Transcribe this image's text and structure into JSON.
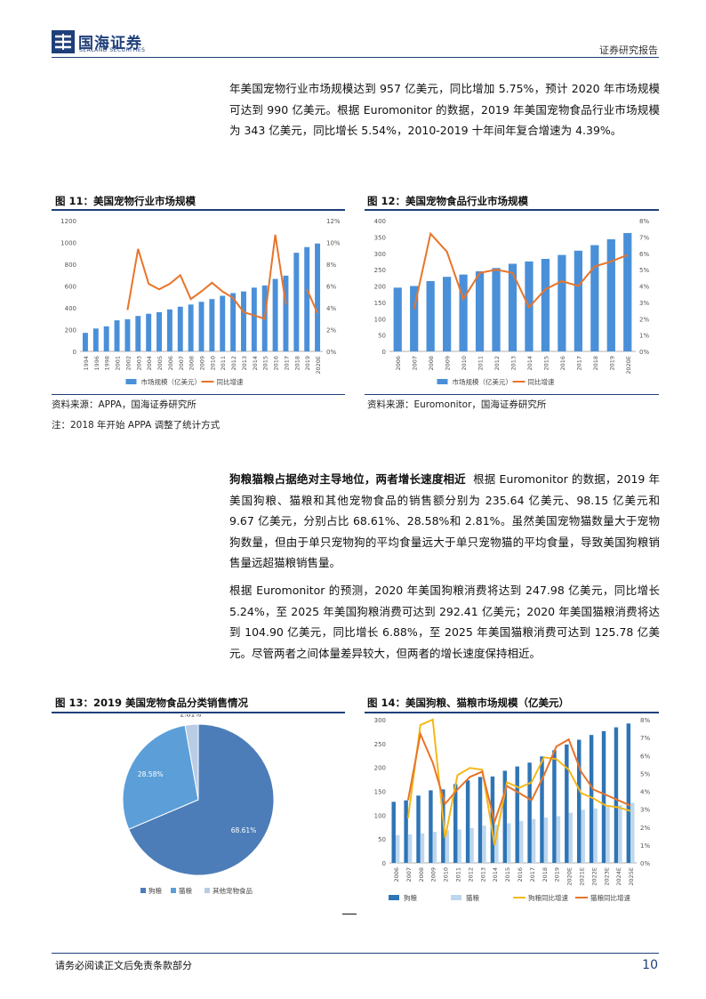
{
  "header": {
    "brand": "国海证券",
    "brand_en": "SEALAND SECURITIES",
    "report_type": "证券研究报告"
  },
  "intro_paragraph": "年美国宠物行业市场规模达到 957 亿美元，同比增加 5.75%，预计 2020 年市场规模可达到 990 亿美元。根据 Euromonitor 的数据，2019 年美国宠物食品行业市场规模为 343 亿美元，同比增长 5.54%，2010-2019 十年间年复合增速为 4.39%。",
  "fig11": {
    "title": "图 11：美国宠物行业市场规模",
    "source": "资料来源：APPA，国海证券研究所",
    "note": "注：2018 年开始 APPA 调整了统计方式"
  },
  "fig12": {
    "title": "图 12：美国宠物食品行业市场规模",
    "source": "资料来源：Euromonitor，国海证券研究所"
  },
  "section2": {
    "lead": "狗粮猫粮占据绝对主导地位，两者增长速度相近",
    "para1_rest": "根据 Euromonitor 的数据，2019 年美国狗粮、猫粮和其他宠物食品的销售额分别为 235.64 亿美元、98.15 亿美元和 9.67 亿美元，分别占比 68.61%、28.58%和 2.81%。虽然美国宠物猫数量大于宠物狗数量，但由于单只宠物狗的平均食量远大于单只宠物猫的平均食量，导致美国狗粮销售量远超猫粮销售量。",
    "para2": "根据 Euromonitor 的预测，2020 年美国狗粮消费将达到 247.98 亿美元，同比增长 5.24%，至 2025 年美国狗粮消费可达到 292.41 亿美元；2020 年美国猫粮消费将达到 104.90 亿美元，同比增长 6.88%，至 2025 年美国猫粮消费可达到 125.78 亿美元。尽管两者之间体量差异较大，但两者的增长速度保持相近。"
  },
  "fig13": {
    "title": "图 13：2019 美国宠物食品分类销售情况"
  },
  "fig14": {
    "title": "图 14：美国狗粮、猫粮市场规模（亿美元）"
  },
  "footer": {
    "disclaimer": "请务必阅读正文后免责条款部分",
    "page": "10"
  },
  "chart_data": [
    {
      "id": "fig11",
      "type": "bar+line",
      "categories": [
        "1994",
        "1996",
        "1998",
        "2001",
        "2002",
        "2003",
        "2004",
        "2005",
        "2006",
        "2007",
        "2008",
        "2009",
        "2010",
        "2011",
        "2012",
        "2013",
        "2014",
        "2015",
        "2016",
        "2017",
        "2018",
        "2019",
        "2020E"
      ],
      "series": [
        {
          "name": "市场规模（亿美元）",
          "type": "bar",
          "axis": "left",
          "color": "#4a90d9",
          "values": [
            170,
            210,
            230,
            285,
            295,
            325,
            345,
            360,
            385,
            410,
            430,
            455,
            480,
            510,
            535,
            550,
            585,
            605,
            665,
            695,
            905,
            957,
            990
          ]
        },
        {
          "name": "同比增速",
          "type": "line",
          "axis": "right",
          "color": "#e8742a",
          "values": [
            null,
            null,
            null,
            null,
            3.8,
            9.4,
            6.2,
            5.7,
            6.2,
            7.0,
            4.8,
            5.5,
            6.3,
            5.5,
            4.9,
            3.6,
            3.3,
            3.0,
            10.7,
            4.3,
            null,
            5.7,
            3.5
          ]
        }
      ],
      "ylim_left": [
        0,
        1200
      ],
      "yticks_left": [
        "0",
        "200",
        "400",
        "600",
        "800",
        "1000",
        "1200"
      ],
      "ylim_right": [
        0,
        12
      ],
      "yticks_right": [
        "0%",
        "2%",
        "4%",
        "6%",
        "8%",
        "10%",
        "12%"
      ]
    },
    {
      "id": "fig12",
      "type": "bar+line",
      "categories": [
        "2006",
        "2007",
        "2008",
        "2009",
        "2010",
        "2011",
        "2012",
        "2013",
        "2014",
        "2015",
        "2016",
        "2017",
        "2018",
        "2019",
        "2020E"
      ],
      "series": [
        {
          "name": "市场规模（亿美元）",
          "type": "bar",
          "axis": "left",
          "color": "#4a90d9",
          "values": [
            195,
            200,
            215,
            228,
            235,
            245,
            255,
            268,
            275,
            283,
            295,
            308,
            325,
            343,
            362
          ]
        },
        {
          "name": "同比增速",
          "type": "line",
          "axis": "right",
          "color": "#e8742a",
          "values": [
            null,
            2.6,
            7.2,
            6.1,
            3.2,
            4.8,
            5.0,
            4.8,
            2.7,
            3.8,
            4.3,
            4.0,
            5.2,
            5.5,
            5.9
          ]
        }
      ],
      "ylim_left": [
        0,
        400
      ],
      "yticks_left": [
        "0",
        "50",
        "100",
        "150",
        "200",
        "250",
        "300",
        "350",
        "400"
      ],
      "ylim_right": [
        0,
        8
      ],
      "yticks_right": [
        "0%",
        "1%",
        "2%",
        "3%",
        "4%",
        "5%",
        "6%",
        "7%",
        "8%"
      ]
    },
    {
      "id": "fig13",
      "type": "pie",
      "labels": [
        "狗粮",
        "猫粮",
        "其他宠物食品"
      ],
      "values": [
        68.61,
        28.58,
        2.81
      ],
      "value_labels": [
        "68.61%",
        "28.58%",
        "2.81%"
      ],
      "colors": [
        "#4c7db8",
        "#5c9fd8",
        "#b8cce4"
      ]
    },
    {
      "id": "fig14",
      "type": "bar+line",
      "categories": [
        "2006",
        "2007",
        "2008",
        "2009",
        "2010",
        "2011",
        "2012",
        "2013",
        "2014",
        "2015",
        "2016",
        "2017",
        "2018",
        "2019",
        "2020E",
        "2021E",
        "2022E",
        "2023E",
        "2024E",
        "2025E"
      ],
      "series": [
        {
          "name": "狗粮",
          "type": "bar",
          "axis": "left",
          "color": "#2e75b6",
          "values": [
            128,
            131,
            141,
            152,
            154,
            165,
            173,
            180,
            181,
            193,
            202,
            210,
            223,
            236,
            248,
            258,
            268,
            276,
            284,
            292
          ]
        },
        {
          "name": "猫粮",
          "type": "bar",
          "axis": "left",
          "color": "#bdd7ee",
          "values": [
            58,
            60,
            62,
            65,
            68,
            70,
            73,
            78,
            80,
            83,
            88,
            92,
            95,
            98,
            105,
            111,
            114,
            117,
            121,
            126
          ]
        },
        {
          "name": "狗粮同比增速",
          "type": "line",
          "axis": "right",
          "color": "#f3b81a",
          "values": [
            null,
            2.5,
            7.7,
            8.0,
            1.4,
            4.9,
            5.3,
            5.2,
            1.0,
            4.5,
            4.2,
            4.5,
            5.9,
            5.8,
            5.2,
            3.9,
            3.6,
            3.2,
            3.1,
            2.9
          ]
        },
        {
          "name": "猫粮同比增速",
          "type": "line",
          "axis": "right",
          "color": "#e8742a",
          "values": [
            null,
            3.5,
            7.2,
            5.6,
            3.3,
            4.1,
            4.8,
            5.1,
            2.3,
            4.3,
            3.9,
            3.5,
            4.9,
            6.5,
            6.9,
            5.1,
            4.1,
            3.8,
            3.5,
            3.2
          ]
        }
      ],
      "ylim_left": [
        0,
        300
      ],
      "yticks_left": [
        "0",
        "50",
        "100",
        "150",
        "200",
        "250",
        "300"
      ],
      "ylim_right": [
        0,
        8
      ],
      "yticks_right": [
        "0%",
        "1%",
        "2%",
        "3%",
        "4%",
        "5%",
        "6%",
        "7%",
        "8%"
      ]
    }
  ]
}
